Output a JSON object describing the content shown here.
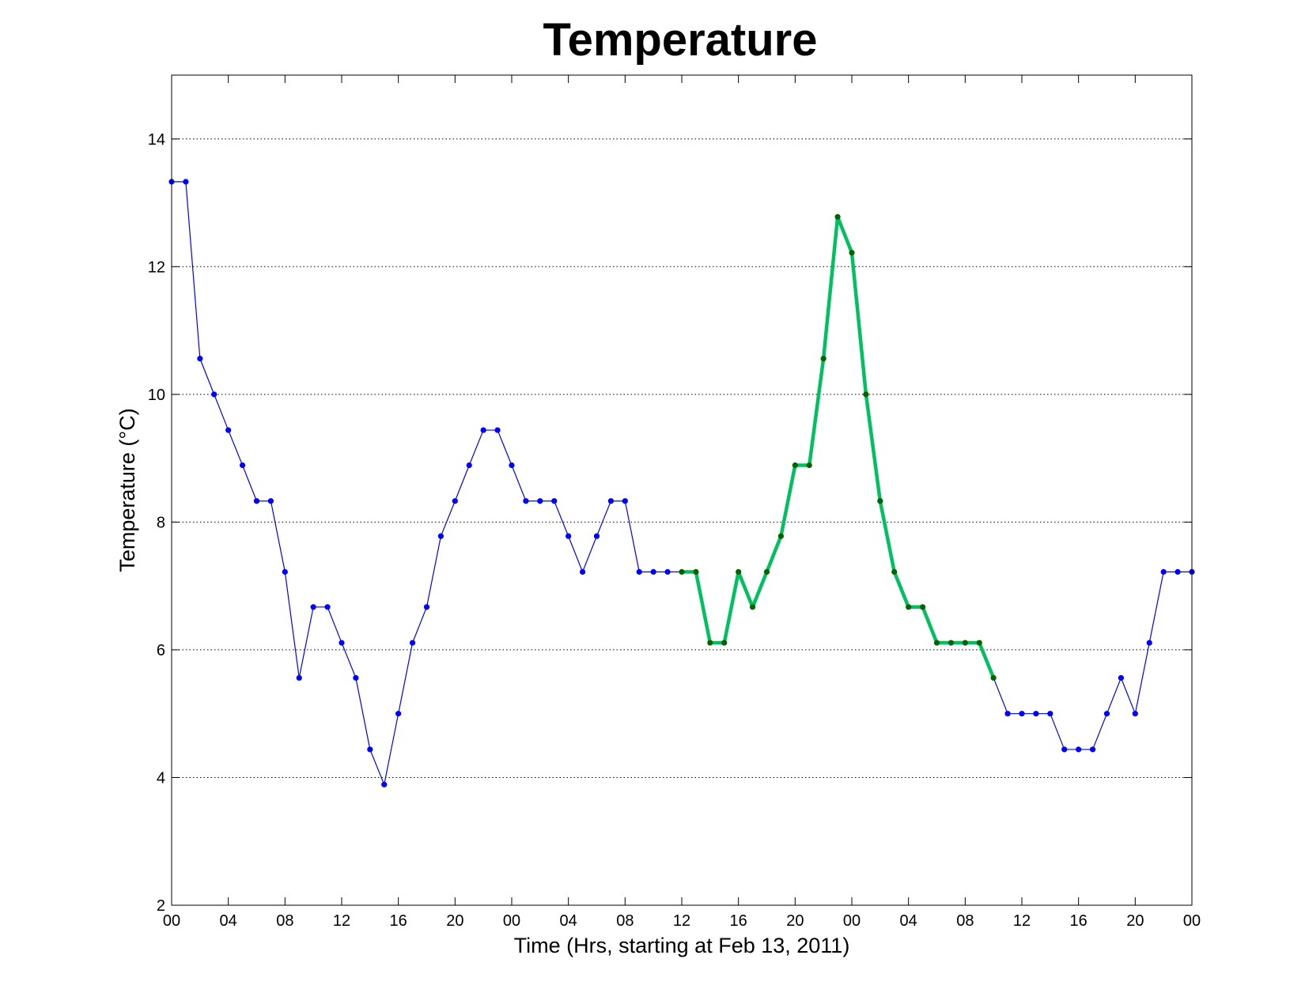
{
  "chart_data": {
    "type": "line",
    "title": "Temperature",
    "xlabel": "Time (Hrs, starting at Feb 13, 2011)",
    "ylabel": "Temperature (°C)",
    "ylim": [
      2,
      15
    ],
    "y_ticks": [
      2,
      4,
      6,
      8,
      10,
      12,
      14
    ],
    "xlim": [
      0,
      72
    ],
    "x_ticks": [
      0,
      4,
      8,
      12,
      16,
      20,
      24,
      28,
      32,
      36,
      40,
      44,
      48,
      52,
      56,
      60,
      64,
      68,
      72
    ],
    "x_tick_labels": [
      "00",
      "04",
      "08",
      "12",
      "16",
      "20",
      "00",
      "04",
      "08",
      "12",
      "16",
      "20",
      "00",
      "04",
      "08",
      "12",
      "16",
      "20",
      "00"
    ],
    "grid": "y-dotted",
    "x": [
      0,
      1,
      2,
      3,
      4,
      5,
      6,
      7,
      8,
      9,
      10,
      11,
      12,
      13,
      14,
      15,
      16,
      17,
      18,
      19,
      20,
      21,
      22,
      23,
      24,
      25,
      26,
      27,
      28,
      29,
      30,
      31,
      32,
      33,
      34,
      35,
      36,
      37,
      38,
      39,
      40,
      41,
      42,
      43,
      44,
      45,
      46,
      47,
      48,
      49,
      50,
      51,
      52,
      53,
      54,
      55,
      56,
      57,
      58,
      59,
      60,
      61,
      62,
      63,
      64,
      65,
      66,
      67,
      68,
      69,
      70,
      71,
      72
    ],
    "series": [
      {
        "color": "#0000ff",
        "style": "thin-line-dot-markers",
        "values": [
          13.33,
          13.33,
          10.56,
          10.0,
          9.44,
          8.89,
          8.33,
          8.33,
          7.22,
          5.56,
          6.67,
          6.67,
          6.11,
          5.56,
          4.44,
          3.89,
          5.0,
          6.11,
          6.67,
          7.78,
          8.33,
          8.89,
          9.44,
          9.44,
          8.89,
          8.33,
          8.33,
          8.33,
          7.78,
          7.22,
          7.78,
          8.33,
          8.33,
          7.22,
          7.22,
          7.22,
          7.22,
          7.22,
          6.11,
          6.11,
          7.22,
          6.67,
          7.22,
          7.78,
          8.89,
          8.89,
          10.56,
          12.78,
          12.22,
          10.0,
          8.33,
          7.22,
          6.67,
          6.67,
          6.11,
          6.11,
          6.11,
          6.11,
          5.56,
          5.0,
          5.0,
          5.0,
          5.0,
          4.44,
          4.44,
          4.44,
          5.0,
          5.56,
          5.0,
          6.11,
          7.22,
          7.22,
          7.22
        ]
      },
      {
        "color": "#00c060",
        "marker_color": "#006400",
        "style": "thick-highlight",
        "x_range": [
          36,
          58
        ]
      }
    ]
  }
}
